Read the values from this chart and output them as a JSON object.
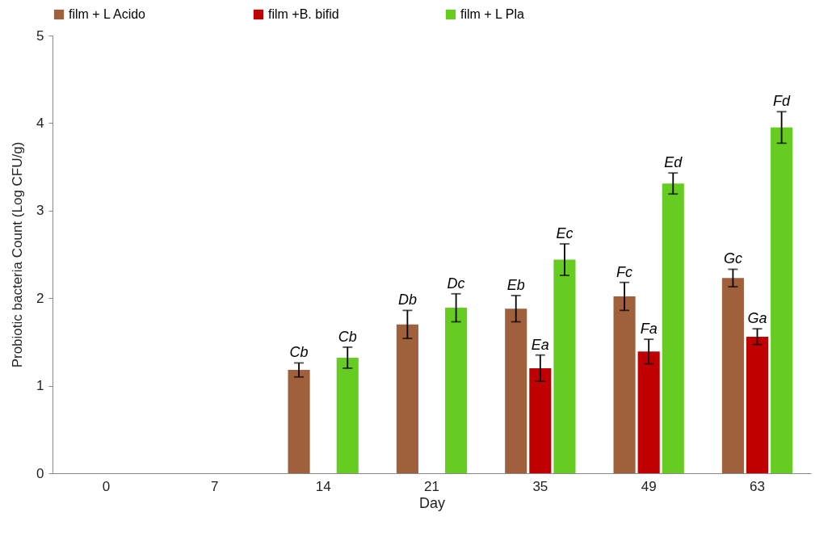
{
  "chart_data": {
    "type": "bar",
    "xlabel": "Day",
    "ylabel": "Probiotic bacteria Count   (Log CFU/g)",
    "categories": [
      "0",
      "7",
      "14",
      "21",
      "35",
      "49",
      "63"
    ],
    "ylim": [
      0,
      5
    ],
    "yticks": [
      0,
      1,
      2,
      3,
      4,
      5
    ],
    "grid": false,
    "legend": "top",
    "series": [
      {
        "name": "film + L Acido",
        "color": "#a0603c",
        "values": [
          0,
          0,
          1.18,
          1.7,
          1.88,
          2.02,
          2.23
        ],
        "errors": [
          null,
          null,
          0.08,
          0.16,
          0.15,
          0.16,
          0.1
        ],
        "value_labels": [
          null,
          null,
          "Cb",
          "Db",
          "Eb",
          "Fc",
          "Gc"
        ]
      },
      {
        "name": "film +B. bifid",
        "color": "#c00000",
        "values": [
          0,
          0,
          0,
          0,
          1.2,
          1.39,
          1.56
        ],
        "errors": [
          null,
          null,
          null,
          null,
          0.15,
          0.14,
          0.09
        ],
        "value_labels": [
          null,
          null,
          null,
          null,
          "Ea",
          "Fa",
          "Ga"
        ]
      },
      {
        "name": "film + L Pla",
        "color": "#66cc22",
        "values": [
          0,
          0,
          1.32,
          1.89,
          2.44,
          3.31,
          3.95
        ],
        "errors": [
          null,
          null,
          0.12,
          0.16,
          0.18,
          0.12,
          0.18
        ],
        "value_labels": [
          null,
          null,
          "Cb",
          "Dc",
          "Ec",
          "Ed",
          "Fd"
        ]
      }
    ]
  }
}
